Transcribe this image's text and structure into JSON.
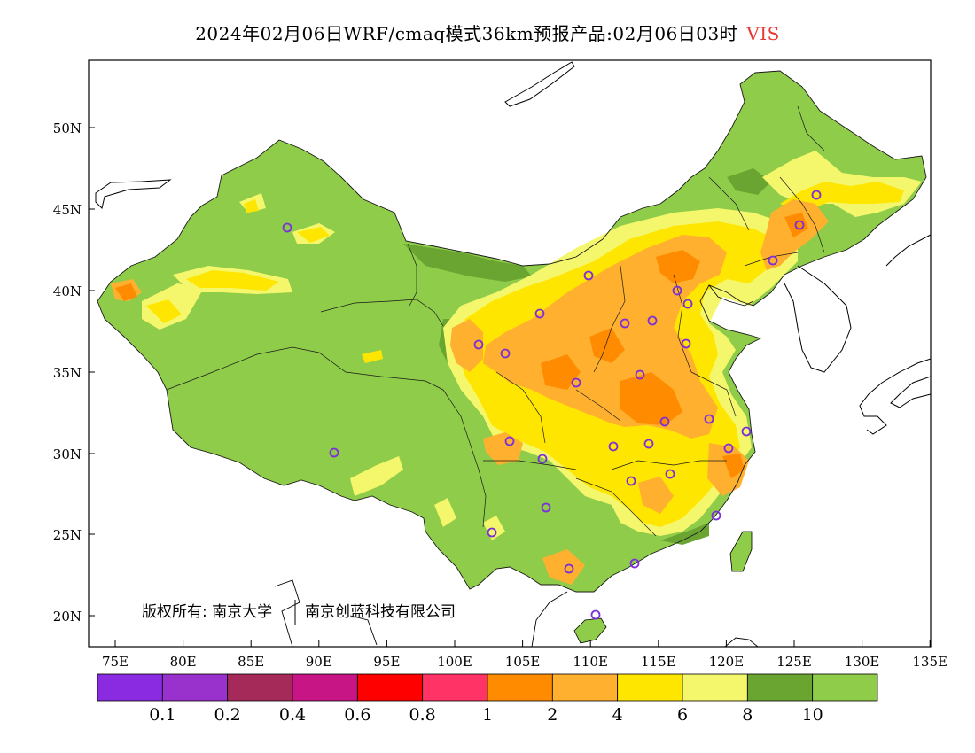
{
  "title": {
    "main": "2024年02月06日WRF/cmaq模式36km预报产品:02月06日03时",
    "variable": "VIS",
    "variable_color": "#e53935"
  },
  "axes": {
    "lat_labels": [
      "50N",
      "45N",
      "40N",
      "35N",
      "30N",
      "25N",
      "20N"
    ],
    "lon_labels": [
      "75E",
      "80E",
      "85E",
      "90E",
      "95E",
      "100E",
      "105E",
      "110E",
      "115E",
      "120E",
      "125E",
      "130E",
      "135E"
    ]
  },
  "copyright": {
    "owner1": "版权所有: 南京大学",
    "owner2": "南京创蓝科技有限公司"
  },
  "colorbar": {
    "colors": [
      "#8a2be2",
      "#9932cc",
      "#a52a5a",
      "#c71585",
      "#ff0000",
      "#ff3366",
      "#ff8c00",
      "#ffb02e",
      "#ffe600",
      "#f4f76c",
      "#6aa532",
      "#8fcc4a"
    ],
    "tick_labels": [
      "0.1",
      "0.2",
      "0.4",
      "0.6",
      "0.8",
      "1",
      "2",
      "4",
      "6",
      "8",
      "10"
    ]
  },
  "map_colors": {
    "land_base": "#8fcc4a",
    "dark_green": "#6aa532",
    "light_yellow": "#f4f76c",
    "yellow": "#ffe600",
    "light_orange": "#ffb02e",
    "orange": "#ff8c00",
    "city_marker": "#7b2fd8"
  }
}
